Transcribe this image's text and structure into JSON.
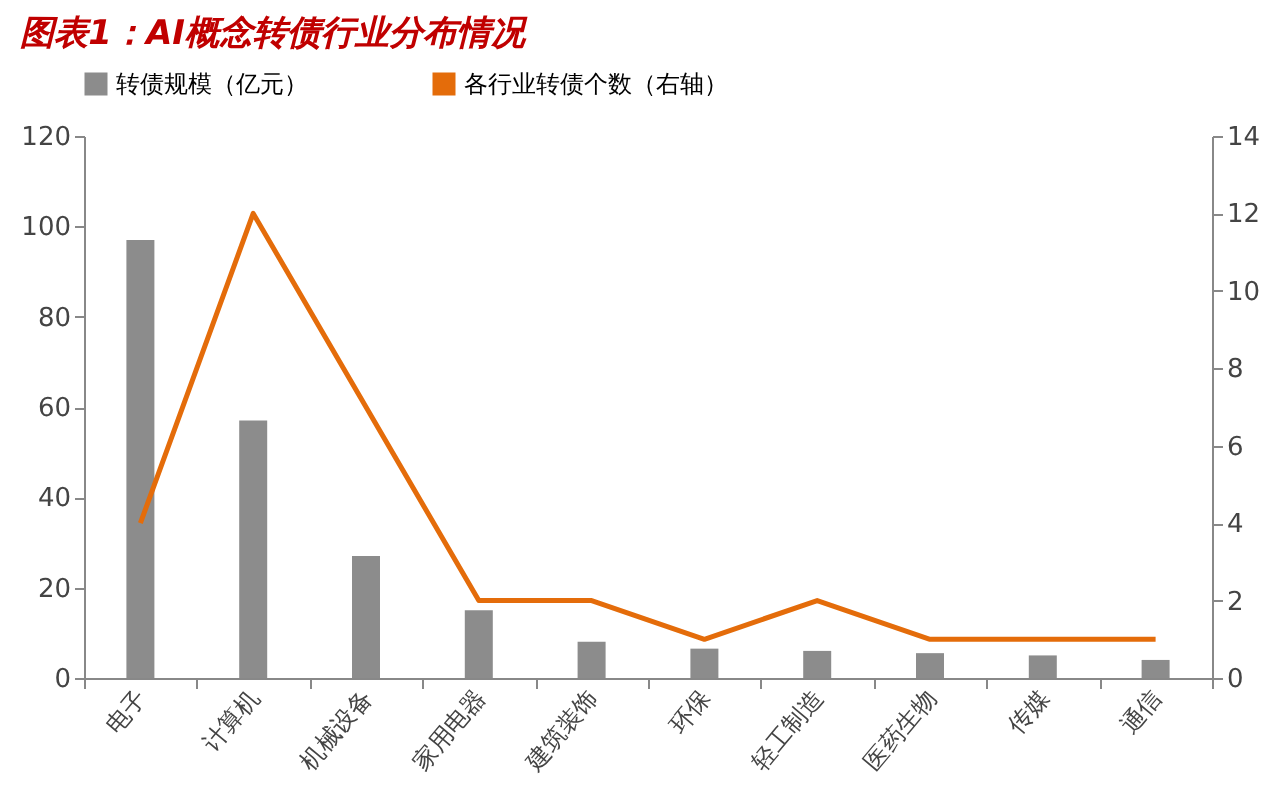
{
  "chart_data": {
    "type": "bar",
    "title": "图表1：AI概念转债行业分布情况",
    "categories": [
      "电子",
      "计算机",
      "机械设备",
      "家用电器",
      "建筑装饰",
      "环保",
      "轻工制造",
      "医药生物",
      "传媒",
      "通信"
    ],
    "series": [
      {
        "name": "转债规模（亿元）",
        "color": "#8c8c8c",
        "values": [
          97,
          57,
          27,
          15,
          8,
          6.5,
          6,
          5.5,
          5,
          4
        ]
      },
      {
        "name": "各行业转债个数（右轴）",
        "type": "line",
        "axis": "y2",
        "color": "#e46c0a",
        "values": [
          4,
          12,
          7,
          2,
          2,
          1,
          2,
          1,
          1,
          1
        ]
      }
    ],
    "ylim": [
      0,
      120
    ],
    "yticks": [
      0,
      20,
      40,
      60,
      80,
      100,
      120
    ],
    "y2lim": [
      0,
      14
    ],
    "y2ticks": [
      0,
      2,
      4,
      6,
      8,
      10,
      12,
      14
    ],
    "grid": false,
    "legend": "top"
  }
}
